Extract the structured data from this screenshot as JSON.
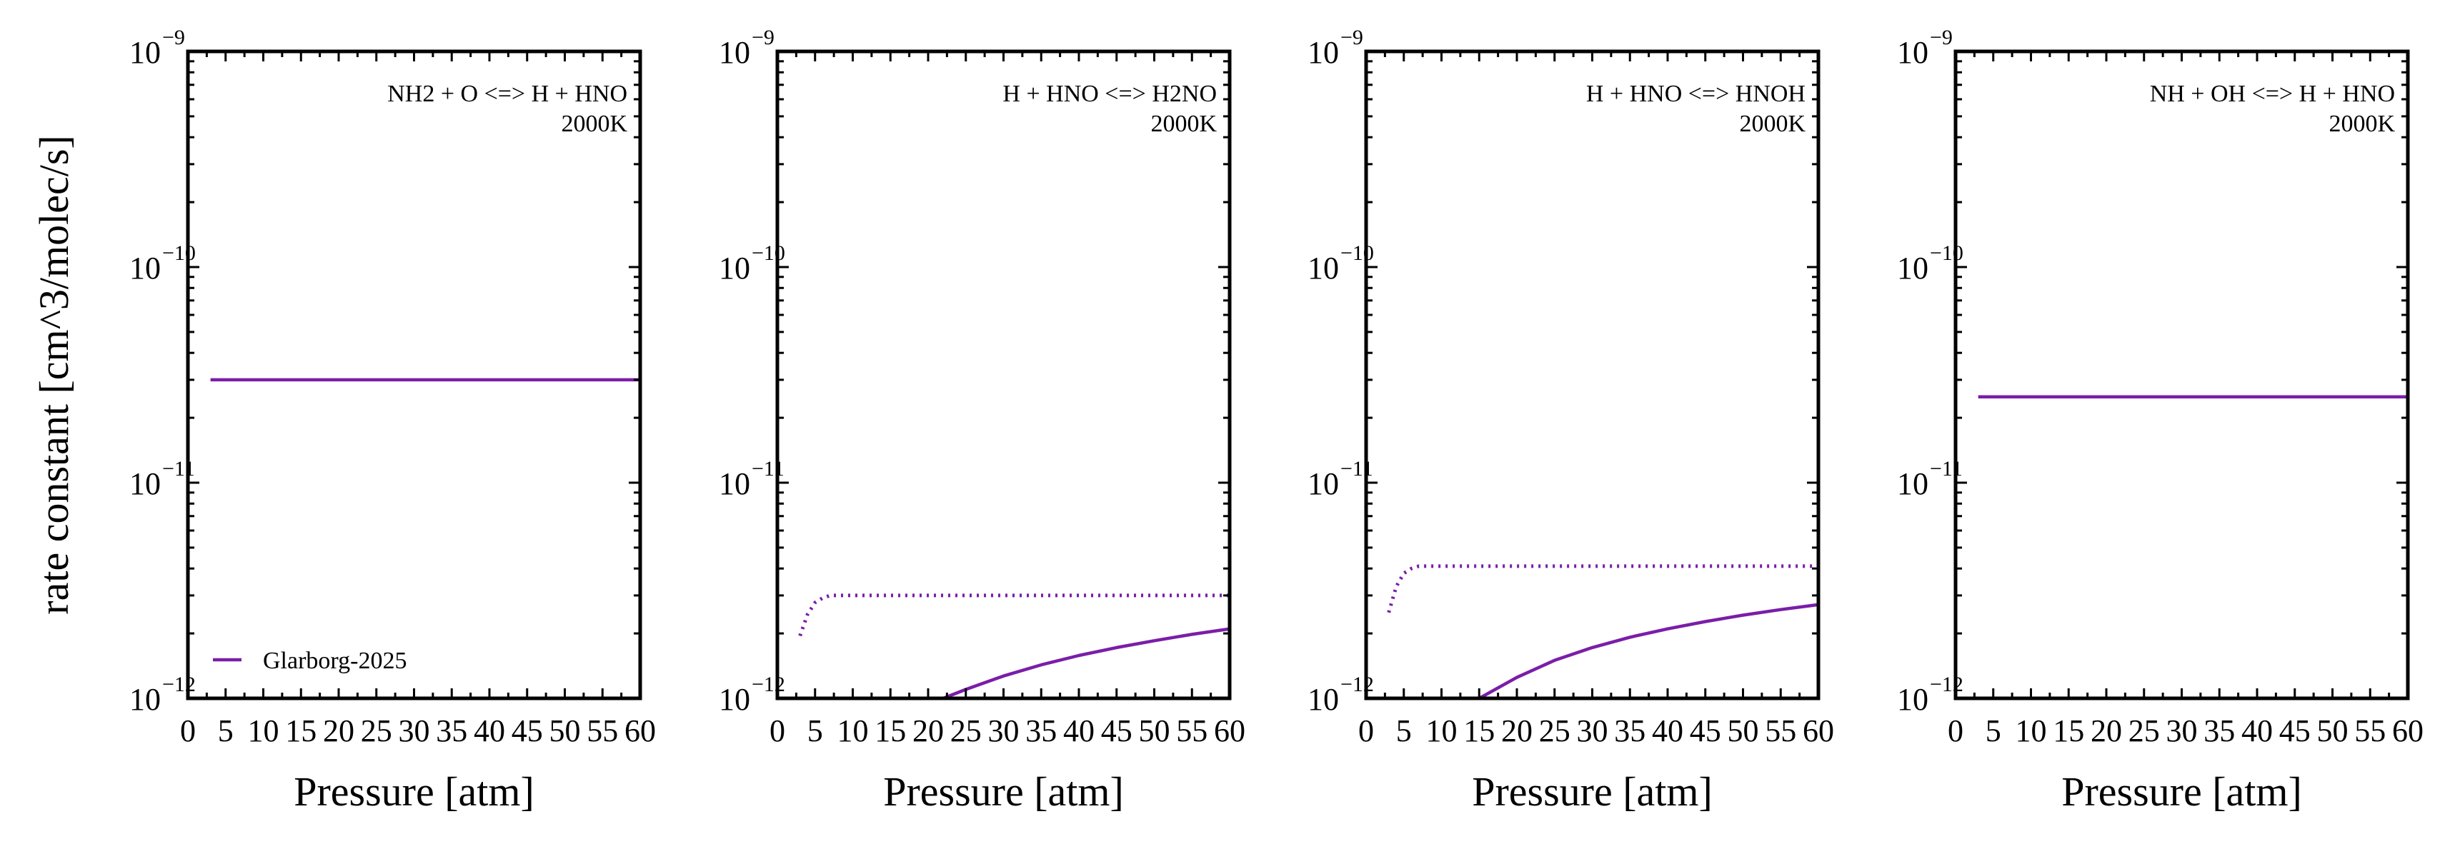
{
  "colors": {
    "series": "#7a1ea8",
    "axes": "#000000",
    "background": "#ffffff"
  },
  "legend": {
    "label": "Glarborg-2025",
    "placement": "lower-left",
    "panel": 0
  },
  "chart_data": [
    {
      "type": "line",
      "title": "",
      "annotation": [
        "NH2 + O <=> H + HNO",
        "2000K"
      ],
      "xlabel": "Pressure [atm]",
      "ylabel": "rate constant [cm^3/molec/s]",
      "xlim": [
        0,
        60
      ],
      "ylim": [
        1e-12,
        1e-09
      ],
      "yscale": "log",
      "grid": false,
      "xticks": [
        "0",
        "5",
        "10",
        "15",
        "20",
        "25",
        "30",
        "35",
        "40",
        "45",
        "50",
        "55",
        "60"
      ],
      "yticks": [
        {
          "base": "10",
          "exp": "−12"
        },
        {
          "base": "10",
          "exp": "−11"
        },
        {
          "base": "10",
          "exp": "−10"
        },
        {
          "base": "10",
          "exp": "−9"
        }
      ],
      "series": [
        {
          "name": "Glarborg-2025",
          "style": "solid",
          "x": [
            3,
            60
          ],
          "y": [
            3e-11,
            3e-11
          ]
        }
      ]
    },
    {
      "type": "line",
      "title": "",
      "annotation": [
        "H + HNO <=> H2NO",
        "2000K"
      ],
      "xlabel": "Pressure [atm]",
      "ylabel": "",
      "xlim": [
        0,
        60
      ],
      "ylim": [
        1e-12,
        1e-09
      ],
      "yscale": "log",
      "grid": false,
      "xticks": [
        "0",
        "5",
        "10",
        "15",
        "20",
        "25",
        "30",
        "35",
        "40",
        "45",
        "50",
        "55",
        "60"
      ],
      "yticks": [
        {
          "base": "10",
          "exp": "−12"
        },
        {
          "base": "10",
          "exp": "−11"
        },
        {
          "base": "10",
          "exp": "−10"
        },
        {
          "base": "10",
          "exp": "−9"
        }
      ],
      "series": [
        {
          "style": "solid",
          "x": [
            22,
            25,
            30,
            35,
            40,
            45,
            50,
            55,
            60
          ],
          "y": [
            1e-12,
            1.1e-12,
            1.27e-12,
            1.43e-12,
            1.58e-12,
            1.72e-12,
            1.85e-12,
            1.98e-12,
            2.1e-12
          ]
        },
        {
          "style": "dotted",
          "x": [
            3,
            4,
            5,
            6,
            7,
            10,
            20,
            30,
            40,
            50,
            60
          ],
          "y": [
            1.95e-12,
            2.45e-12,
            2.78e-12,
            2.92e-12,
            3e-12,
            3e-12,
            3e-12,
            3e-12,
            3e-12,
            3e-12,
            3e-12
          ]
        }
      ]
    },
    {
      "type": "line",
      "title": "",
      "annotation": [
        "H + HNO <=> HNOH",
        "2000K"
      ],
      "xlabel": "Pressure [atm]",
      "ylabel": "",
      "xlim": [
        0,
        60
      ],
      "ylim": [
        1e-12,
        1e-09
      ],
      "yscale": "log",
      "grid": false,
      "xticks": [
        "0",
        "5",
        "10",
        "15",
        "20",
        "25",
        "30",
        "35",
        "40",
        "45",
        "50",
        "55",
        "60"
      ],
      "yticks": [
        {
          "base": "10",
          "exp": "−12"
        },
        {
          "base": "10",
          "exp": "−11"
        },
        {
          "base": "10",
          "exp": "−10"
        },
        {
          "base": "10",
          "exp": "−9"
        }
      ],
      "series": [
        {
          "style": "solid",
          "x": [
            15,
            20,
            25,
            30,
            35,
            40,
            45,
            50,
            55,
            60
          ],
          "y": [
            1e-12,
            1.25e-12,
            1.5e-12,
            1.72e-12,
            1.92e-12,
            2.1e-12,
            2.27e-12,
            2.43e-12,
            2.58e-12,
            2.72e-12
          ]
        },
        {
          "style": "dotted",
          "x": [
            3,
            4,
            5,
            6,
            7,
            10,
            20,
            30,
            40,
            50,
            60
          ],
          "y": [
            2.5e-12,
            3.3e-12,
            3.8e-12,
            4e-12,
            4.1e-12,
            4.1e-12,
            4.1e-12,
            4.1e-12,
            4.1e-12,
            4.1e-12,
            4.1e-12
          ]
        }
      ]
    },
    {
      "type": "line",
      "title": "",
      "annotation": [
        "NH + OH <=> H + HNO",
        "2000K"
      ],
      "xlabel": "Pressure [atm]",
      "ylabel": "",
      "xlim": [
        0,
        60
      ],
      "ylim": [
        1e-12,
        1e-09
      ],
      "yscale": "log",
      "grid": false,
      "xticks": [
        "0",
        "5",
        "10",
        "15",
        "20",
        "25",
        "30",
        "35",
        "40",
        "45",
        "50",
        "55",
        "60"
      ],
      "yticks": [
        {
          "base": "10",
          "exp": "−12"
        },
        {
          "base": "10",
          "exp": "−11"
        },
        {
          "base": "10",
          "exp": "−10"
        },
        {
          "base": "10",
          "exp": "−9"
        }
      ],
      "series": [
        {
          "style": "solid",
          "x": [
            3,
            60
          ],
          "y": [
            2.5e-11,
            2.5e-11
          ]
        }
      ]
    }
  ]
}
